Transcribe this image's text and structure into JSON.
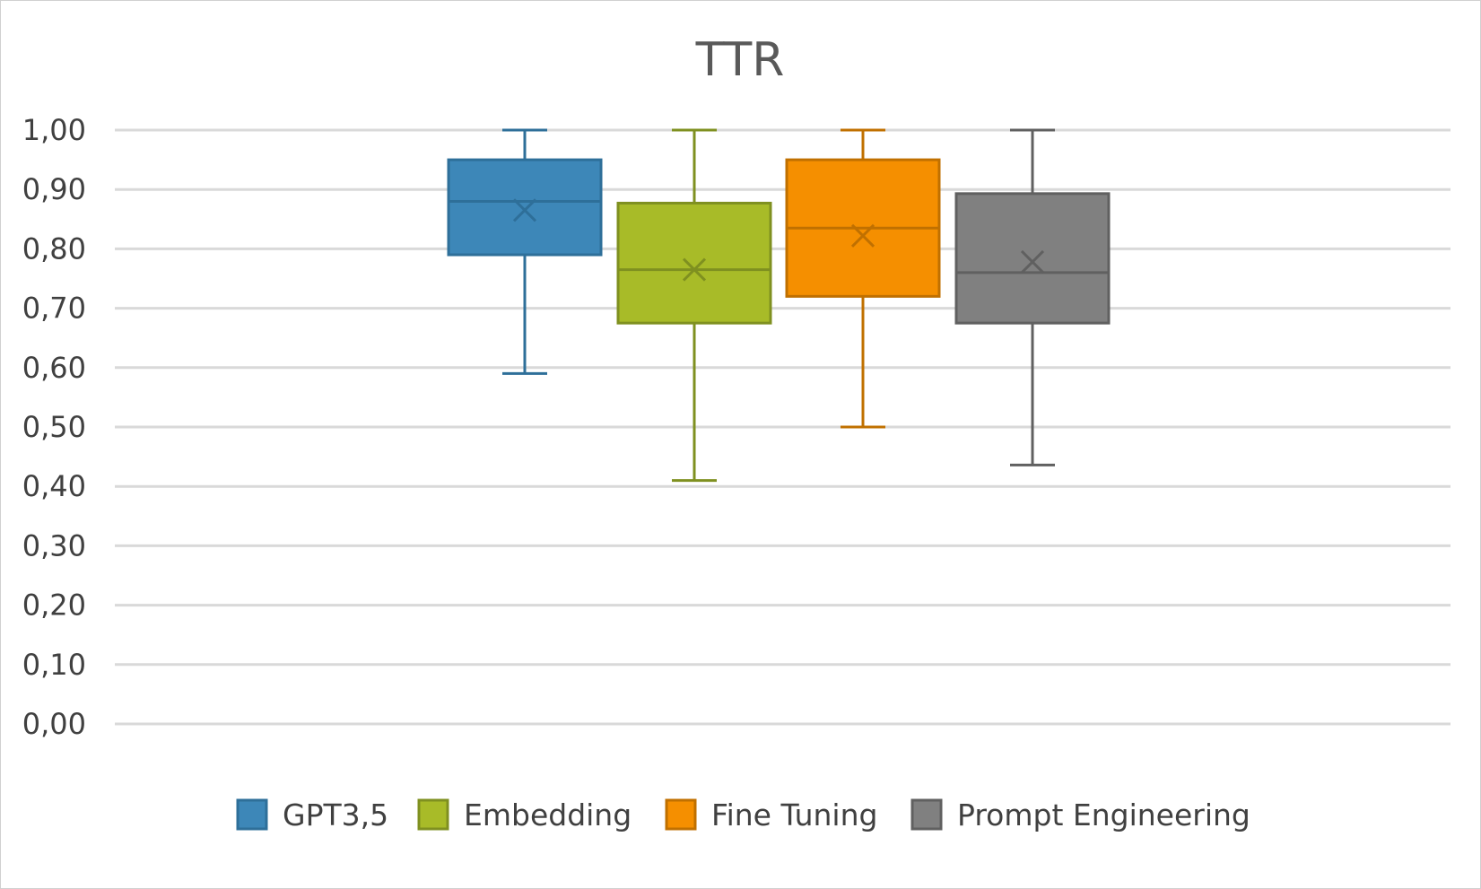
{
  "chart_data": {
    "type": "boxplot",
    "title": "TTR",
    "xlabel": "",
    "ylabel": "",
    "ylim": [
      0,
      1
    ],
    "y_ticks": [
      "0,00",
      "0,10",
      "0,20",
      "0,30",
      "0,40",
      "0,50",
      "0,60",
      "0,70",
      "0,80",
      "0,90",
      "1,00"
    ],
    "y_tick_values": [
      0,
      0.1,
      0.2,
      0.3,
      0.4,
      0.5,
      0.6,
      0.7,
      0.8,
      0.9,
      1.0
    ],
    "grid": true,
    "legend_position": "bottom",
    "series": [
      {
        "name": "GPT3,5",
        "color": "#3d87b8",
        "stroke": "#2e6f99",
        "min": 0.59,
        "q1": 0.79,
        "median": 0.88,
        "q3": 0.95,
        "max": 1.0,
        "mean": 0.865
      },
      {
        "name": "Embedding",
        "color": "#a8bb28",
        "stroke": "#7f9020",
        "min": 0.41,
        "q1": 0.675,
        "median": 0.765,
        "q3": 0.877,
        "max": 1.0,
        "mean": 0.765
      },
      {
        "name": "Fine Tuning",
        "color": "#f58f00",
        "stroke": "#c07000",
        "min": 0.5,
        "q1": 0.72,
        "median": 0.835,
        "q3": 0.95,
        "max": 1.0,
        "mean": 0.822
      },
      {
        "name": "Prompt Engineering",
        "color": "#808080",
        "stroke": "#606060",
        "min": 0.436,
        "q1": 0.675,
        "median": 0.76,
        "q3": 0.893,
        "max": 1.0,
        "mean": 0.778
      }
    ]
  }
}
